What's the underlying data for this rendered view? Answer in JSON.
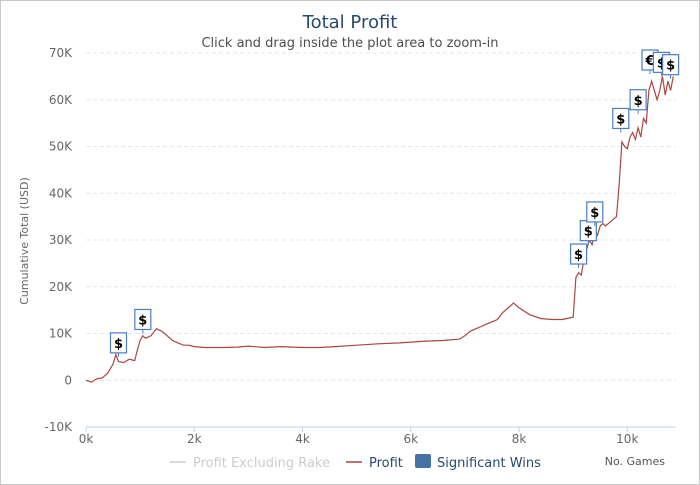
{
  "chart_data": {
    "type": "line",
    "title": "Total Profit",
    "subtitle": "Click and drag inside the plot area to zoom-in",
    "ylabel": "Cumulative Total (USD)",
    "xlabel": "No. Games",
    "xlim": [
      0,
      10900
    ],
    "ylim": [
      -10000,
      70000
    ],
    "x_ticks": [
      0,
      2000,
      4000,
      6000,
      8000,
      10000
    ],
    "x_tick_labels": [
      "0k",
      "2k",
      "4k",
      "6k",
      "8k",
      "10k"
    ],
    "y_ticks": [
      -10000,
      0,
      10000,
      20000,
      30000,
      40000,
      50000,
      60000,
      70000
    ],
    "y_tick_labels": [
      "-10K",
      "0",
      "10K",
      "20K",
      "30K",
      "40K",
      "50K",
      "60K",
      "70K"
    ],
    "legend": {
      "placement": "bottom-center",
      "items": [
        {
          "label": "Profit Excluding Rake",
          "color": "#cccccc",
          "kind": "line",
          "hidden": true
        },
        {
          "label": "Profit",
          "color": "#aa4643",
          "kind": "line"
        },
        {
          "label": "Significant Wins",
          "color": "#4572a7",
          "kind": "box"
        }
      ]
    },
    "series": [
      {
        "name": "Profit",
        "color": "#aa4643",
        "x": [
          0,
          100,
          200,
          300,
          400,
          500,
          550,
          600,
          700,
          800,
          900,
          950,
          1000,
          1050,
          1100,
          1200,
          1300,
          1400,
          1500,
          1600,
          1700,
          1800,
          1900,
          2000,
          2200,
          2500,
          2800,
          3000,
          3300,
          3600,
          4000,
          4300,
          4600,
          5000,
          5400,
          5800,
          6200,
          6600,
          6900,
          7000,
          7100,
          7200,
          7300,
          7400,
          7500,
          7600,
          7700,
          7800,
          7900,
          8000,
          8200,
          8400,
          8600,
          8800,
          9000,
          9050,
          9100,
          9150,
          9200,
          9250,
          9300,
          9350,
          9400,
          9450,
          9500,
          9550,
          9600,
          9700,
          9800,
          9850,
          9900,
          9950,
          10000,
          10050,
          10100,
          10150,
          10200,
          10250,
          10300,
          10350,
          10400,
          10450,
          10500,
          10550,
          10600,
          10650,
          10700,
          10750,
          10800,
          10850
        ],
        "values": [
          0,
          -400,
          300,
          500,
          1500,
          3500,
          5500,
          4000,
          3800,
          4500,
          4200,
          6500,
          8500,
          9500,
          9000,
          9500,
          11000,
          10500,
          9500,
          8500,
          8000,
          7500,
          7500,
          7200,
          7000,
          7000,
          7100,
          7300,
          7000,
          7200,
          7000,
          7000,
          7200,
          7500,
          7800,
          8000,
          8300,
          8500,
          8800,
          9500,
          10500,
          11000,
          11500,
          12000,
          12500,
          13000,
          14500,
          15500,
          16500,
          15500,
          14000,
          13200,
          13000,
          13000,
          13500,
          22000,
          23000,
          22500,
          26000,
          28000,
          30000,
          29000,
          32000,
          31000,
          33000,
          33500,
          33000,
          34000,
          35000,
          42000,
          51000,
          50000,
          49500,
          52000,
          53000,
          51500,
          54000,
          52000,
          56000,
          55000,
          62000,
          64000,
          62000,
          60000,
          62000,
          65000,
          61000,
          64000,
          62000,
          65000
        ]
      }
    ],
    "significant_wins": [
      {
        "x": 600,
        "y": 8000,
        "label": "$"
      },
      {
        "x": 1050,
        "y": 13000,
        "label": "$"
      },
      {
        "x": 9100,
        "y": 27000,
        "label": "$"
      },
      {
        "x": 9280,
        "y": 32000,
        "label": "$"
      },
      {
        "x": 9400,
        "y": 36000,
        "label": "$"
      },
      {
        "x": 9880,
        "y": 56000,
        "label": "$"
      },
      {
        "x": 10200,
        "y": 60000,
        "label": "$"
      },
      {
        "x": 10420,
        "y": 68500,
        "label": "€"
      },
      {
        "x": 10630,
        "y": 68000,
        "label": "$"
      },
      {
        "x": 10800,
        "y": 67500,
        "label": "$"
      }
    ]
  }
}
